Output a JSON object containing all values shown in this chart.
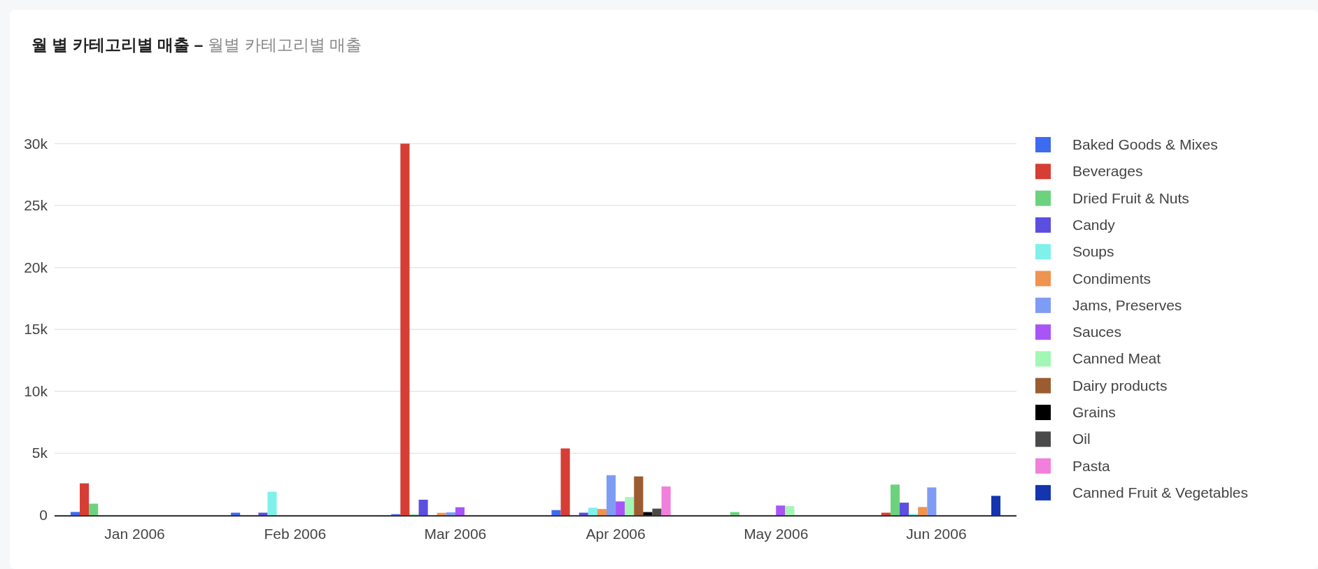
{
  "chart_data": {
    "type": "bar",
    "title": "월 별 카테고리별 매출 –",
    "subtitle": "월별 카테고리별 매출",
    "categories": [
      "Jan 2006",
      "Feb 2006",
      "Mar 2006",
      "Apr 2006",
      "May 2006",
      "Jun 2006"
    ],
    "ylim": [
      0,
      30000
    ],
    "yticks": [
      0,
      {
        "value": 5000,
        "label": "5k"
      },
      {
        "value": 10000,
        "label": "10k"
      },
      {
        "value": 15000,
        "label": "15k"
      },
      {
        "value": 20000,
        "label": "20k"
      },
      {
        "value": 25000,
        "label": "25k"
      },
      {
        "value": 30000,
        "label": "30k"
      }
    ],
    "grid": "y",
    "legend": "right",
    "series": [
      {
        "name": "Baked Goods & Mixes",
        "color": "#3d6bf0",
        "values": [
          260,
          200,
          80,
          410,
          null,
          null
        ]
      },
      {
        "name": "Beverages",
        "color": "#d63e35",
        "values": [
          2570,
          null,
          30000,
          5390,
          null,
          200
        ]
      },
      {
        "name": "Dried Fruit & Nuts",
        "color": "#6dd27e",
        "values": [
          930,
          null,
          50,
          null,
          250,
          2470
        ]
      },
      {
        "name": "Candy",
        "color": "#5b4ee0",
        "values": [
          null,
          200,
          1250,
          200,
          null,
          1010
        ]
      },
      {
        "name": "Soups",
        "color": "#7ff0ea",
        "values": [
          null,
          1890,
          null,
          600,
          null,
          100
        ]
      },
      {
        "name": "Condiments",
        "color": "#ef9350",
        "values": [
          null,
          null,
          190,
          500,
          null,
          660
        ]
      },
      {
        "name": "Jams, Preserves",
        "color": "#7f9cf5",
        "values": [
          null,
          null,
          230,
          3230,
          null,
          2240
        ]
      },
      {
        "name": "Sauces",
        "color": "#a855f7",
        "values": [
          null,
          null,
          640,
          1110,
          780,
          null
        ]
      },
      {
        "name": "Canned Meat",
        "color": "#a3f7b5",
        "values": [
          null,
          null,
          null,
          1460,
          730,
          null
        ]
      },
      {
        "name": "Dairy products",
        "color": "#9a5c30",
        "values": [
          null,
          null,
          null,
          3130,
          null,
          null
        ]
      },
      {
        "name": "Grains",
        "color": "#000000",
        "values": [
          null,
          null,
          null,
          250,
          null,
          null
        ]
      },
      {
        "name": "Oil",
        "color": "#4a4a4a",
        "values": [
          null,
          null,
          null,
          530,
          null,
          null
        ]
      },
      {
        "name": "Pasta",
        "color": "#f080dc",
        "values": [
          null,
          null,
          null,
          2320,
          null,
          null
        ]
      },
      {
        "name": "Canned Fruit & Vegetables",
        "color": "#1434b0",
        "values": [
          null,
          null,
          null,
          null,
          null,
          1560
        ]
      }
    ]
  }
}
